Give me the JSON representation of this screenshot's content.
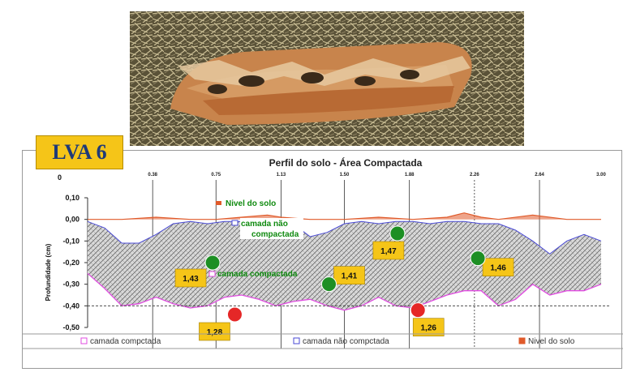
{
  "badge": {
    "label": "LVA 6"
  },
  "photo": {
    "alt": "perfil de solo compactado"
  },
  "colors": {
    "compacted_line": "#e04ce0",
    "uncompacted_line": "#4a4ad6",
    "soil_level": "#e05a2a",
    "hatch": "#6a6a6a",
    "green_point": "#1d8f24",
    "red_point": "#e52727",
    "value_box": "#f5c518"
  },
  "chart_data": {
    "type": "area",
    "title": "Perfil do solo - Área Compactada",
    "ylabel": "Profundidade (cm)",
    "y_axis_top_label": "0",
    "ylim": [
      -0.5,
      0.1
    ],
    "yticks": [
      "0,10",
      "0,00",
      "-0,10",
      "-0,20",
      "-0,30",
      "-0,40",
      "-0,50"
    ],
    "xlim": [
      0,
      3.0
    ],
    "xticks": [
      "0.38",
      "0.75",
      "1.13",
      "1.50",
      "1.88",
      "2.26",
      "2.64",
      "3.00"
    ],
    "grid": false,
    "series": [
      {
        "name": "Nivel do solo",
        "x": [
          0,
          0.2,
          0.4,
          0.6,
          0.75,
          0.9,
          1.05,
          1.13,
          1.3,
          1.5,
          1.7,
          1.9,
          2.1,
          2.2,
          2.3,
          2.4,
          2.6,
          2.8,
          3.0
        ],
        "y": [
          0.0,
          0.0,
          0.01,
          0.0,
          0.0,
          0.01,
          0.02,
          0.01,
          0.0,
          0.0,
          0.01,
          0.0,
          0.01,
          0.03,
          0.01,
          0.0,
          0.02,
          0.0,
          0.0
        ]
      },
      {
        "name": "camada não compctada",
        "x": [
          0,
          0.1,
          0.2,
          0.3,
          0.4,
          0.5,
          0.6,
          0.7,
          0.8,
          0.9,
          1.0,
          1.1,
          1.2,
          1.3,
          1.4,
          1.5,
          1.6,
          1.7,
          1.8,
          1.9,
          2.0,
          2.1,
          2.2,
          2.3,
          2.4,
          2.5,
          2.6,
          2.7,
          2.8,
          2.9,
          3.0
        ],
        "y": [
          -0.01,
          -0.04,
          -0.11,
          -0.11,
          -0.07,
          -0.02,
          -0.01,
          -0.02,
          -0.01,
          -0.01,
          -0.02,
          -0.01,
          -0.02,
          -0.08,
          -0.06,
          -0.02,
          -0.01,
          -0.02,
          -0.01,
          -0.01,
          -0.02,
          -0.01,
          -0.01,
          -0.02,
          -0.02,
          -0.05,
          -0.1,
          -0.16,
          -0.1,
          -0.07,
          -0.1
        ]
      },
      {
        "name": "camada compctada",
        "x": [
          0,
          0.1,
          0.2,
          0.3,
          0.4,
          0.5,
          0.6,
          0.7,
          0.8,
          0.9,
          1.0,
          1.1,
          1.2,
          1.3,
          1.4,
          1.5,
          1.6,
          1.7,
          1.8,
          1.9,
          2.0,
          2.1,
          2.2,
          2.3,
          2.4,
          2.5,
          2.6,
          2.7,
          2.8,
          2.9,
          3.0
        ],
        "y": [
          -0.25,
          -0.32,
          -0.4,
          -0.39,
          -0.36,
          -0.39,
          -0.41,
          -0.4,
          -0.36,
          -0.35,
          -0.37,
          -0.4,
          -0.38,
          -0.37,
          -0.4,
          -0.42,
          -0.4,
          -0.36,
          -0.4,
          -0.41,
          -0.38,
          -0.35,
          -0.33,
          -0.33,
          -0.4,
          -0.37,
          -0.3,
          -0.35,
          -0.33,
          -0.33,
          -0.3
        ]
      }
    ],
    "annotations": [
      "Nivel do solo",
      "camada não compactada",
      "camada compactada"
    ],
    "points": [
      {
        "x": 0.73,
        "y": -0.2,
        "color": "green",
        "label": "1,43"
      },
      {
        "x": 1.41,
        "y": -0.3,
        "color": "green",
        "label": "1,41"
      },
      {
        "x": 1.81,
        "y": -0.065,
        "color": "green",
        "label": "1,47"
      },
      {
        "x": 2.28,
        "y": -0.18,
        "color": "green",
        "label": "1,46"
      },
      {
        "x": 0.86,
        "y": -0.44,
        "color": "red",
        "label": "1,28"
      },
      {
        "x": 1.93,
        "y": -0.42,
        "color": "red",
        "label": "1,26"
      }
    ],
    "reference_line_y": -0.4,
    "legend": {
      "position": "bottom",
      "items": [
        {
          "marker": "pink",
          "label": "camada compctada"
        },
        {
          "marker": "blue",
          "label": "camada não compctada"
        },
        {
          "marker": "red",
          "label": "Nivel do solo"
        }
      ]
    }
  }
}
